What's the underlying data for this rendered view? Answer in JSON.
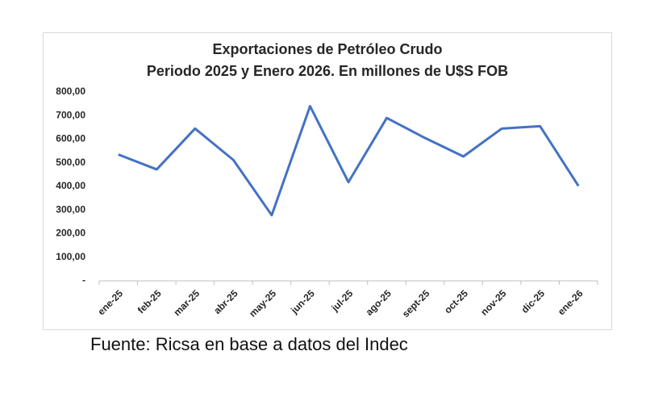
{
  "chart_data": {
    "type": "line",
    "title": "Exportaciones de Petróleo Crudo",
    "subtitle": "Periodo 2025 y Enero 2026. En millones de U$S FOB",
    "categories": [
      "ene-25",
      "feb-25",
      "mar-25",
      "abr-25",
      "may-25",
      "jun-25",
      "jul-25",
      "ago-25",
      "sept-25",
      "oct-25",
      "nov-25",
      "dic-25",
      "ene-26"
    ],
    "series": [
      {
        "color": "#4472c4",
        "values": [
          535,
          472,
          645,
          512,
          278,
          740,
          418,
          690,
          605,
          527,
          645,
          655,
          402
        ]
      }
    ],
    "ylim": [
      0,
      800
    ],
    "yticks": [
      {
        "value": 0,
        "label": "-"
      },
      {
        "value": 100,
        "label": "100,00"
      },
      {
        "value": 200,
        "label": "200,00"
      },
      {
        "value": 300,
        "label": "300,00"
      },
      {
        "value": 400,
        "label": "400,00"
      },
      {
        "value": 500,
        "label": "500,00"
      },
      {
        "value": 600,
        "label": "600,00"
      },
      {
        "value": 700,
        "label": "700,00"
      },
      {
        "value": 800,
        "label": "800,00"
      }
    ],
    "grid": false,
    "source": "Fuente: Ricsa en base a datos del Indec"
  }
}
